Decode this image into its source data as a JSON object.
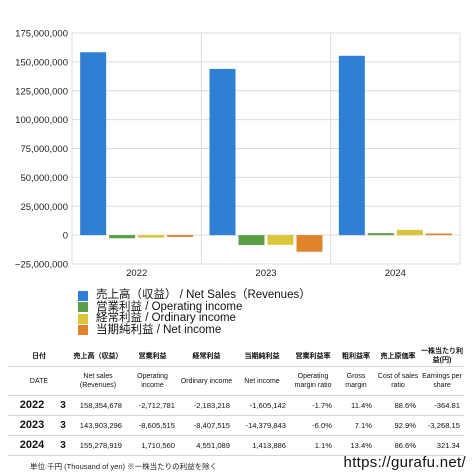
{
  "chart_data": {
    "type": "bar",
    "categories": [
      "2022",
      "2023",
      "2024"
    ],
    "ylim": [
      -25000000,
      175000000
    ],
    "yticks": [
      "175,000,000",
      "150,000,000",
      "125,000,000",
      "100,000,000",
      "75,000,000",
      "50,000,000",
      "25,000,000",
      "0",
      "−25,000,000"
    ],
    "ytick_values": [
      175000000,
      150000000,
      125000000,
      100000000,
      75000000,
      50000000,
      25000000,
      0,
      -25000000
    ],
    "grid": true,
    "series": [
      {
        "name": "売上高（収益） / Net Sales（Revenues）",
        "color": "#2f7fd4",
        "values": [
          158354678,
          143903296,
          155278919
        ]
      },
      {
        "name": "営業利益 / Operating income",
        "color": "#5b9e47",
        "values": [
          -2712781,
          -8605515,
          1710560
        ]
      },
      {
        "name": "経常利益 / Ordinary income",
        "color": "#d9c63a",
        "values": [
          -2183218,
          -8407515,
          4551089
        ]
      },
      {
        "name": "当期純利益 / Net income",
        "color": "#e0842c",
        "values": [
          -1605142,
          -14379843,
          1413886
        ]
      }
    ]
  },
  "legend": [
    {
      "label": "売上高（収益） / Net Sales（Revenues）",
      "color": "#2f7fd4"
    },
    {
      "label": "営業利益 / Operating income",
      "color": "#5b9e47"
    },
    {
      "label": "経常利益 / Ordinary income",
      "color": "#d9c63a"
    },
    {
      "label": "当期純利益 / Net income",
      "color": "#e0842c"
    }
  ],
  "table": {
    "headers_jp": [
      "日付",
      "売上高（収益）",
      "営業利益",
      "経常利益",
      "当期純利益",
      "営業利益率",
      "粗利益率",
      "売上原価率",
      "一株当たり利益(円)"
    ],
    "headers_en": [
      "DATE",
      "Net sales (Revenues)",
      "Operating income",
      "Ordinary income",
      "Net income",
      "Operating margin ratio",
      "Gross margin",
      "Cost of sales ratio",
      "Earnings per share"
    ],
    "rows": [
      {
        "year": "2022",
        "count": "3",
        "net_sales": "158,354,678",
        "operating_income": "-2,712,781",
        "ordinary_income": "-2,183,218",
        "net_income": "-1,605,142",
        "op_margin": "-1.7%",
        "gross_margin": "11.4%",
        "cost_ratio": "88.6%",
        "eps": "-364.81"
      },
      {
        "year": "2023",
        "count": "3",
        "net_sales": "143,903,296",
        "operating_income": "-8,605,515",
        "ordinary_income": "-8,407,515",
        "net_income": "-14,379,843",
        "op_margin": "-6.0%",
        "gross_margin": "7.1%",
        "cost_ratio": "92.9%",
        "eps": "-3,268.15"
      },
      {
        "year": "2024",
        "count": "3",
        "net_sales": "155,278,919",
        "operating_income": "1,710,560",
        "ordinary_income": "4,551,089",
        "net_income": "1,413,886",
        "op_margin": "1.1%",
        "gross_margin": "13.4%",
        "cost_ratio": "86.6%",
        "eps": "321.34"
      }
    ]
  },
  "footnote": "単位:千円 (Thousand of yen) ※一株当たりの利益を除く",
  "site_url": "https://gurafu.net/"
}
